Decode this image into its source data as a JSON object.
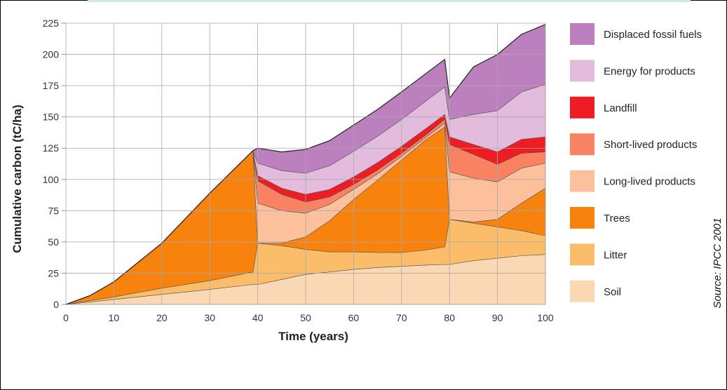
{
  "chart_data": {
    "type": "area",
    "xlabel": "Time  (years)",
    "ylabel": "Cumulative  carbon  (tC/ha)",
    "xlim": [
      0,
      100
    ],
    "ylim": [
      0,
      225
    ],
    "x_ticks": [
      "0",
      "10",
      "20",
      "30",
      "40",
      "50",
      "60",
      "70",
      "80",
      "90",
      "100"
    ],
    "y_ticks": [
      "0",
      "25",
      "50",
      "75",
      "100",
      "125",
      "150",
      "175",
      "200",
      "225"
    ],
    "grid": true,
    "stacked": true,
    "legend_position": "right",
    "source": "Source: IPCC 2001",
    "x": [
      0,
      5,
      10,
      20,
      30,
      39,
      40,
      45,
      50,
      55,
      60,
      65,
      70,
      75,
      79,
      80,
      85,
      90,
      95,
      100
    ],
    "series": [
      {
        "name": "Soil",
        "color": "#fad8b4",
        "values": [
          0,
          2,
          4,
          8,
          12,
          16,
          16,
          20,
          24,
          26,
          28,
          29.5,
          30.5,
          31.5,
          32,
          32,
          35,
          37,
          39,
          40
        ]
      },
      {
        "name": "Litter",
        "color": "#fbbd6a",
        "values": [
          0,
          1,
          2,
          5,
          7,
          10,
          33,
          27,
          20,
          16,
          14,
          12,
          11,
          12,
          14,
          36,
          30,
          25,
          20,
          15
        ]
      },
      {
        "name": "Trees",
        "color": "#f7830e",
        "values": [
          0,
          4,
          12,
          36,
          70,
          97,
          0,
          2,
          10,
          25,
          42,
          58,
          74,
          88,
          96,
          0,
          1,
          6,
          22,
          38
        ]
      },
      {
        "name": "Long-lived products",
        "color": "#fcc09d",
        "values": [
          0,
          0,
          0,
          0,
          0,
          0,
          32,
          26,
          19,
          13,
          8,
          5,
          3,
          2,
          3,
          38,
          35,
          30,
          28,
          20
        ]
      },
      {
        "name": "Short-lived products",
        "color": "#f88262",
        "values": [
          0,
          0,
          0,
          0,
          0,
          0,
          18,
          13,
          9,
          6,
          4,
          3,
          2.5,
          2,
          3,
          22,
          19,
          14,
          12,
          9
        ]
      },
      {
        "name": "Landfill",
        "color": "#ee1c23",
        "values": [
          0,
          0,
          0,
          0,
          0,
          0,
          4,
          5,
          6,
          6,
          6,
          6,
          5.5,
          5,
          4,
          6,
          8,
          10,
          11,
          12
        ]
      },
      {
        "name": "Energy for products",
        "color": "#e3bbdd",
        "values": [
          0,
          0,
          0,
          0,
          0,
          0,
          10,
          14,
          17,
          19,
          20.5,
          21,
          21.5,
          22,
          22,
          14,
          24,
          33,
          38,
          42
        ]
      },
      {
        "name": "Displaced fossil fuels",
        "color": "#bd80be",
        "values": [
          0,
          0,
          0,
          0,
          0,
          0,
          12,
          15,
          19,
          20,
          21,
          21.5,
          22,
          22,
          22,
          17,
          38,
          45,
          46,
          48
        ]
      }
    ]
  },
  "legend_order": [
    "Displaced fossil fuels",
    "Energy for products",
    "Landfill",
    "Short-lived products",
    "Long-lived products",
    "Trees",
    "Litter",
    "Soil"
  ]
}
